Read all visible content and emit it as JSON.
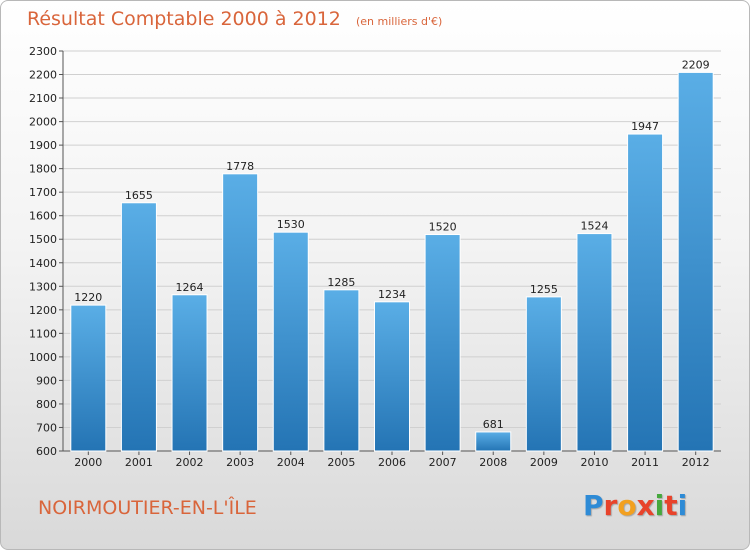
{
  "title": "Résultat Comptable 2000 à 2012",
  "subtitle": "(en milliers d'€)",
  "commune": "NOIRMOUTIER-EN-L'ÎLE",
  "logo_text": "Proxiti",
  "logo_colors": [
    "#2e8bd6",
    "#e8432b",
    "#f2a020",
    "#e8432b",
    "#45a83c",
    "#e8432b",
    "#2e8bd6"
  ],
  "colors": {
    "bar_top": "#5aaee6",
    "bar_bottom": "#2474b4",
    "title": "#d9653b",
    "grid": "#d0d0d0"
  },
  "chart_data": {
    "type": "bar",
    "title": "Résultat Comptable 2000 à 2012",
    "xlabel": "",
    "ylabel": "",
    "categories": [
      "2000",
      "2001",
      "2002",
      "2003",
      "2004",
      "2005",
      "2006",
      "2007",
      "2008",
      "2009",
      "2010",
      "2011",
      "2012"
    ],
    "values": [
      1220,
      1655,
      1264,
      1778,
      1530,
      1285,
      1234,
      1520,
      681,
      1255,
      1524,
      1947,
      2209
    ],
    "ylim": [
      600,
      2300
    ],
    "yticks": [
      600,
      700,
      800,
      900,
      1000,
      1100,
      1200,
      1300,
      1400,
      1500,
      1600,
      1700,
      1800,
      1900,
      2000,
      2100,
      2200,
      2300
    ],
    "grid": true
  }
}
